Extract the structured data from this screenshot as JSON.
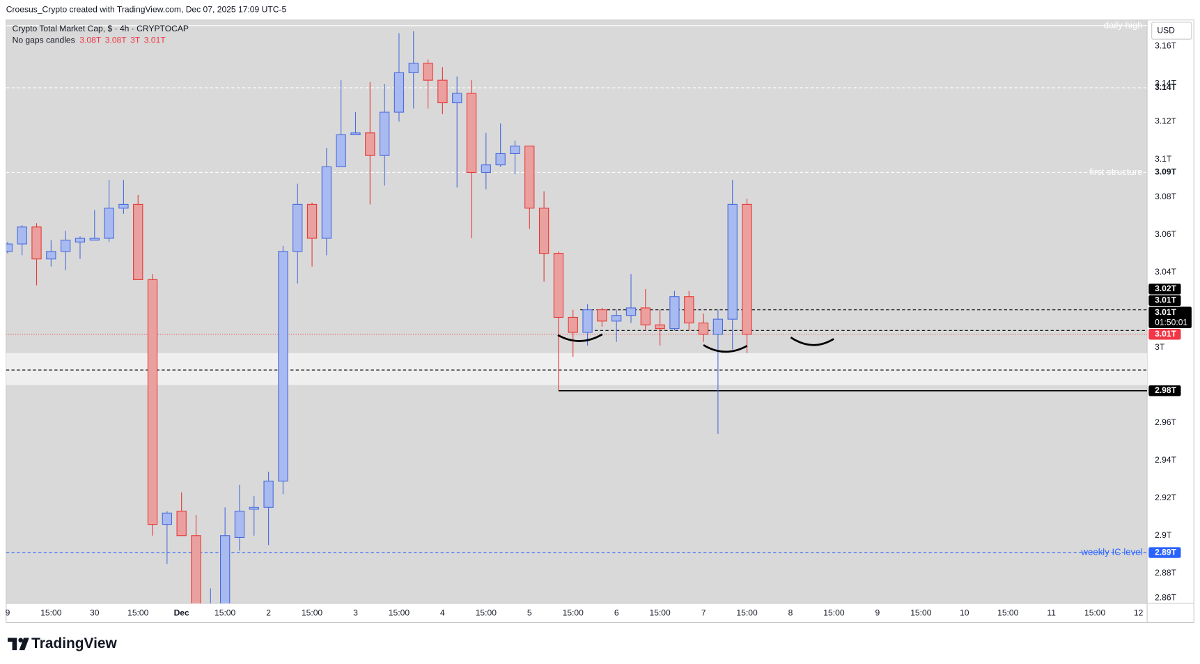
{
  "header": "Croesus_Crypto created with TradingView.com, Dec 07, 2025 17:09 UTC-5",
  "brand": "TradingView",
  "chart_data": {
    "type": "candlestick",
    "title": "Crypto Total Market Cap, $ · 4h · CRYPTOCAP",
    "subtitle": "No gaps candles",
    "ohlc_labels": [
      "3.08T",
      "3.08T",
      "3T",
      "3.01T"
    ],
    "currency": "USD",
    "up": {
      "line": "#4a6cdc",
      "fill": "#a8baf0"
    },
    "down": {
      "line": "#e53935",
      "fill": "#eba0a0"
    },
    "x": [
      0,
      1,
      2,
      3,
      4,
      5,
      6,
      7,
      8,
      9,
      10,
      11,
      12,
      13,
      14,
      15,
      16,
      17,
      18,
      19,
      20,
      21,
      22,
      23,
      24,
      25,
      26,
      27,
      28,
      29,
      30,
      31,
      32,
      33,
      34,
      35,
      36,
      37,
      38,
      39,
      40,
      41,
      42,
      43,
      44,
      45,
      46,
      47,
      48,
      49,
      50,
      51
    ],
    "open": [
      3.051,
      3.055,
      3.064,
      3.047,
      3.051,
      3.056,
      3.057,
      3.058,
      3.074,
      3.076,
      3.036,
      2.906,
      2.913,
      2.9,
      2.852,
      2.86,
      2.899,
      2.914,
      2.915,
      2.929,
      3.051,
      3.076,
      3.058,
      3.096,
      3.113,
      3.114,
      3.102,
      3.125,
      3.146,
      3.151,
      3.142,
      3.13,
      3.135,
      3.093,
      3.097,
      3.103,
      3.107,
      3.074,
      3.05,
      3.016,
      3.008,
      3.02,
      3.014,
      3.017,
      3.021,
      3.012,
      3.01,
      3.027,
      3.013,
      3.007,
      3.015,
      3.076
    ],
    "high": [
      3.056,
      3.065,
      3.066,
      3.057,
      3.062,
      3.059,
      3.073,
      3.089,
      3.089,
      3.081,
      3.039,
      2.913,
      2.923,
      2.911,
      2.872,
      2.915,
      2.927,
      2.921,
      2.934,
      3.054,
      3.087,
      3.077,
      3.106,
      3.142,
      3.125,
      3.141,
      3.14,
      3.167,
      3.168,
      3.153,
      3.149,
      3.144,
      3.142,
      3.114,
      3.119,
      3.11,
      3.107,
      3.083,
      3.051,
      3.02,
      3.023,
      3.021,
      3.02,
      3.039,
      3.031,
      3.02,
      3.03,
      3.03,
      3.018,
      3.02,
      3.089,
      3.079
    ],
    "low": [
      3.05,
      3.049,
      3.033,
      3.043,
      3.041,
      3.047,
      3.057,
      3.056,
      3.071,
      3.036,
      2.9,
      2.885,
      2.9,
      2.85,
      2.846,
      2.856,
      2.892,
      2.9,
      2.895,
      2.922,
      3.034,
      3.043,
      3.049,
      3.096,
      3.113,
      3.076,
      3.086,
      3.12,
      3.127,
      3.127,
      3.124,
      3.085,
      3.058,
      3.084,
      3.096,
      3.092,
      3.063,
      3.035,
      2.977,
      2.995,
      3.001,
      3.011,
      3.003,
      3.013,
      3.009,
      3.001,
      3.009,
      3.009,
      3.003,
      2.954,
      2.999,
      2.997
    ],
    "close": [
      3.055,
      3.064,
      3.047,
      3.051,
      3.057,
      3.058,
      3.058,
      3.074,
      3.076,
      3.036,
      2.906,
      2.912,
      2.9,
      2.855,
      2.86,
      2.9,
      2.913,
      2.915,
      2.929,
      3.051,
      3.076,
      3.058,
      3.096,
      3.113,
      3.114,
      3.102,
      3.125,
      3.146,
      3.151,
      3.142,
      3.13,
      3.135,
      3.093,
      3.097,
      3.103,
      3.107,
      3.074,
      3.05,
      3.016,
      3.008,
      3.02,
      3.014,
      3.017,
      3.021,
      3.012,
      3.01,
      3.027,
      3.013,
      3.007,
      3.015,
      3.076,
      3.007
    ],
    "xlim": [
      -0.1,
      78.6
    ],
    "xticks": [
      {
        "value": 0,
        "label": "9"
      },
      {
        "value": 3,
        "label": "15:00"
      },
      {
        "value": 6,
        "label": "30"
      },
      {
        "value": 9,
        "label": "15:00"
      },
      {
        "value": 12,
        "label": "Dec"
      },
      {
        "value": 15,
        "label": "15:00"
      },
      {
        "value": 18,
        "label": "2"
      },
      {
        "value": 21,
        "label": "15:00"
      },
      {
        "value": 24,
        "label": "3"
      },
      {
        "value": 27,
        "label": "15:00"
      },
      {
        "value": 30,
        "label": "4"
      },
      {
        "value": 33,
        "label": "15:00"
      },
      {
        "value": 36,
        "label": "5"
      },
      {
        "value": 39,
        "label": "15:00"
      },
      {
        "value": 42,
        "label": "6"
      },
      {
        "value": 45,
        "label": "15:00"
      },
      {
        "value": 48,
        "label": "7"
      },
      {
        "value": 51,
        "label": "15:00"
      },
      {
        "value": 54,
        "label": "8"
      },
      {
        "value": 57,
        "label": "15:00"
      },
      {
        "value": 60,
        "label": "9"
      },
      {
        "value": 63,
        "label": "15:00"
      },
      {
        "value": 66,
        "label": "10"
      },
      {
        "value": 69,
        "label": "15:00"
      },
      {
        "value": 72,
        "label": "11"
      },
      {
        "value": 75,
        "label": "15:00"
      },
      {
        "value": 78,
        "label": "12"
      }
    ],
    "ylim": [
      2.864,
      3.174
    ],
    "yticks": [
      {
        "value": 3.16,
        "label": "3.16T"
      },
      {
        "value": 3.14,
        "label": "3.14T"
      },
      {
        "value": 3.12,
        "label": "3.12T"
      },
      {
        "value": 3.1,
        "label": "3.1T"
      },
      {
        "value": 3.08,
        "label": "3.08T"
      },
      {
        "value": 3.06,
        "label": "3.06T"
      },
      {
        "value": 3.04,
        "label": "3.04T"
      },
      {
        "value": 3,
        "label": "3T"
      },
      {
        "value": 2.96,
        "label": "2.96T"
      },
      {
        "value": 2.94,
        "label": "2.94T"
      },
      {
        "value": 2.92,
        "label": "2.92T"
      },
      {
        "value": 2.9,
        "label": "2.9T"
      },
      {
        "value": 2.88,
        "label": "2.88T"
      },
      {
        "value": 2.86,
        "label": "2.86T"
      }
    ],
    "zone": {
      "from": 2.98,
      "to": 2.997,
      "mid": 2.988
    },
    "levels": [
      {
        "text": "daily high",
        "value": 3.171,
        "color": "#ffffff",
        "style": "solid"
      },
      {
        "value": 3.138,
        "label": "3.14T",
        "color": "#ffffff",
        "style": "dashed"
      },
      {
        "text": "first structure",
        "value": 3.093,
        "label": "3.09T",
        "color": "#ffffff",
        "style": "dashed"
      },
      {
        "text": "weekly IC level",
        "value": 2.891,
        "label": "2.89T",
        "color": "#2962ff",
        "style": "dashed"
      },
      {
        "value": 3.02,
        "color": "#000000",
        "style": "dashed",
        "x_start": 39.5
      },
      {
        "value": 3.009,
        "color": "#000000",
        "style": "dashed",
        "x_start": 40.5
      },
      {
        "value": 2.977,
        "label": "2.98T",
        "color": "#000000",
        "style": "solid",
        "x_start": 38
      }
    ],
    "last_price": {
      "value": 3.007,
      "color": "#f23645"
    },
    "price_labels": [
      {
        "label": "3.01T",
        "value": 3.007,
        "bg": "#f23645"
      },
      {
        "label": "3.01T",
        "countdown": "01:50:01",
        "value": 3.009,
        "bg": "#000000"
      },
      {
        "label": "3.01T",
        "value": 3.01,
        "bg": "#000000"
      },
      {
        "label": "3.02T",
        "value": 3.02,
        "bg": "#000000"
      }
    ]
  }
}
